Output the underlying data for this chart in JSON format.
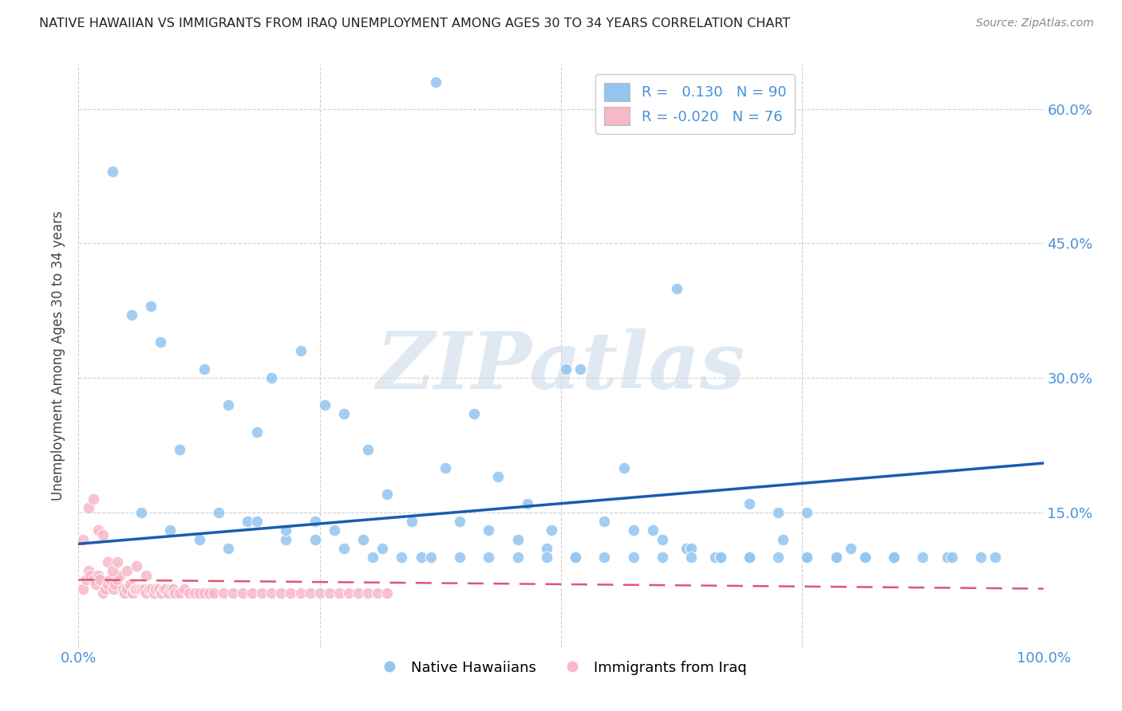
{
  "title": "NATIVE HAWAIIAN VS IMMIGRANTS FROM IRAQ UNEMPLOYMENT AMONG AGES 30 TO 34 YEARS CORRELATION CHART",
  "source": "Source: ZipAtlas.com",
  "ylabel": "Unemployment Among Ages 30 to 34 years",
  "xlim": [
    0,
    1.0
  ],
  "ylim": [
    0,
    0.65
  ],
  "yticks": [
    0.0,
    0.15,
    0.3,
    0.45,
    0.6
  ],
  "blue_R": 0.13,
  "blue_N": 90,
  "pink_R": -0.02,
  "pink_N": 76,
  "blue_color": "#92c5f0",
  "pink_color": "#f7b8c8",
  "blue_line_color": "#1a5cb0",
  "pink_line_color": "#e05575",
  "watermark": "ZIPatlas",
  "background_color": "#ffffff",
  "grid_color": "#d0d0d0",
  "blue_line_y0": 0.115,
  "blue_line_y1": 0.205,
  "pink_line_y0": 0.075,
  "pink_line_y1": 0.065,
  "blue_scatter_x": [
    0.035,
    0.075,
    0.37,
    0.59,
    0.62,
    0.055,
    0.085,
    0.13,
    0.155,
    0.185,
    0.2,
    0.23,
    0.255,
    0.275,
    0.3,
    0.32,
    0.345,
    0.38,
    0.41,
    0.435,
    0.465,
    0.49,
    0.505,
    0.52,
    0.565,
    0.595,
    0.63,
    0.66,
    0.695,
    0.73,
    0.755,
    0.8,
    0.845,
    0.9,
    0.95,
    0.105,
    0.145,
    0.175,
    0.215,
    0.245,
    0.265,
    0.295,
    0.315,
    0.355,
    0.395,
    0.425,
    0.455,
    0.485,
    0.515,
    0.545,
    0.575,
    0.605,
    0.635,
    0.665,
    0.695,
    0.725,
    0.755,
    0.785,
    0.815,
    0.845,
    0.065,
    0.095,
    0.125,
    0.155,
    0.185,
    0.215,
    0.245,
    0.275,
    0.305,
    0.335,
    0.365,
    0.395,
    0.425,
    0.455,
    0.485,
    0.515,
    0.545,
    0.575,
    0.605,
    0.635,
    0.665,
    0.695,
    0.725,
    0.755,
    0.785,
    0.815,
    0.845,
    0.875,
    0.905,
    0.935
  ],
  "blue_scatter_y": [
    0.53,
    0.38,
    0.63,
    0.59,
    0.4,
    0.37,
    0.34,
    0.31,
    0.27,
    0.24,
    0.3,
    0.33,
    0.27,
    0.26,
    0.22,
    0.17,
    0.14,
    0.2,
    0.26,
    0.19,
    0.16,
    0.13,
    0.31,
    0.31,
    0.2,
    0.13,
    0.11,
    0.1,
    0.1,
    0.12,
    0.15,
    0.11,
    0.1,
    0.1,
    0.1,
    0.22,
    0.15,
    0.14,
    0.12,
    0.14,
    0.13,
    0.12,
    0.11,
    0.1,
    0.14,
    0.13,
    0.12,
    0.11,
    0.1,
    0.14,
    0.13,
    0.12,
    0.11,
    0.1,
    0.16,
    0.15,
    0.1,
    0.1,
    0.1,
    0.1,
    0.15,
    0.13,
    0.12,
    0.11,
    0.14,
    0.13,
    0.12,
    0.11,
    0.1,
    0.1,
    0.1,
    0.1,
    0.1,
    0.1,
    0.1,
    0.1,
    0.1,
    0.1,
    0.1,
    0.1,
    0.1,
    0.1,
    0.1,
    0.1,
    0.1,
    0.1,
    0.1,
    0.1,
    0.1,
    0.1
  ],
  "pink_scatter_x": [
    0.005,
    0.008,
    0.01,
    0.012,
    0.015,
    0.018,
    0.02,
    0.022,
    0.025,
    0.028,
    0.03,
    0.033,
    0.036,
    0.038,
    0.04,
    0.043,
    0.046,
    0.048,
    0.05,
    0.053,
    0.056,
    0.058,
    0.06,
    0.063,
    0.066,
    0.068,
    0.07,
    0.073,
    0.076,
    0.078,
    0.08,
    0.083,
    0.086,
    0.088,
    0.09,
    0.093,
    0.096,
    0.098,
    0.1,
    0.105,
    0.11,
    0.115,
    0.12,
    0.125,
    0.13,
    0.135,
    0.14,
    0.15,
    0.16,
    0.17,
    0.18,
    0.19,
    0.2,
    0.21,
    0.22,
    0.23,
    0.24,
    0.25,
    0.26,
    0.27,
    0.28,
    0.29,
    0.3,
    0.31,
    0.32,
    0.005,
    0.01,
    0.015,
    0.02,
    0.025,
    0.03,
    0.035,
    0.04,
    0.05,
    0.06,
    0.07
  ],
  "pink_scatter_y": [
    0.065,
    0.075,
    0.085,
    0.08,
    0.075,
    0.07,
    0.08,
    0.075,
    0.06,
    0.065,
    0.07,
    0.075,
    0.065,
    0.07,
    0.075,
    0.08,
    0.065,
    0.06,
    0.065,
    0.07,
    0.06,
    0.065,
    0.065,
    0.065,
    0.065,
    0.065,
    0.06,
    0.065,
    0.065,
    0.06,
    0.065,
    0.065,
    0.06,
    0.065,
    0.065,
    0.06,
    0.065,
    0.065,
    0.06,
    0.06,
    0.065,
    0.06,
    0.06,
    0.06,
    0.06,
    0.06,
    0.06,
    0.06,
    0.06,
    0.06,
    0.06,
    0.06,
    0.06,
    0.06,
    0.06,
    0.06,
    0.06,
    0.06,
    0.06,
    0.06,
    0.06,
    0.06,
    0.06,
    0.06,
    0.06,
    0.12,
    0.155,
    0.165,
    0.13,
    0.125,
    0.095,
    0.085,
    0.095,
    0.085,
    0.09,
    0.08
  ]
}
